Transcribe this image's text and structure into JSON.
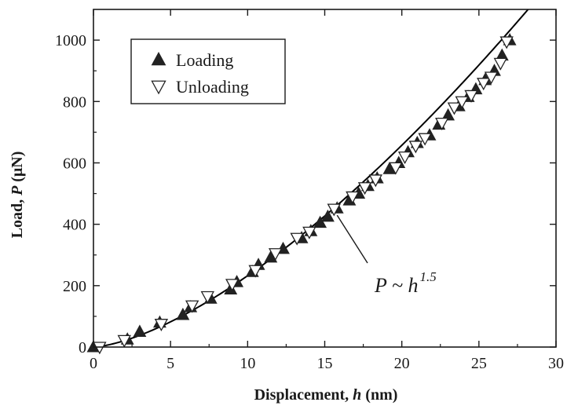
{
  "chart_data": {
    "type": "scatter",
    "title": "",
    "xlabel": {
      "prefix": "Displacement, ",
      "var": "h",
      "suffix": " (nm)"
    },
    "ylabel": {
      "prefix": "Load, ",
      "var": "P",
      "suffix": " (μN)"
    },
    "xlim": [
      0,
      30
    ],
    "ylim": [
      0,
      1100
    ],
    "xticks": [
      0,
      5,
      10,
      15,
      20,
      25,
      30
    ],
    "yticks": [
      0,
      200,
      400,
      600,
      800,
      1000
    ],
    "grid": false,
    "legend_position": "top-left",
    "series": [
      {
        "name": "Loading",
        "marker": "filled-triangle-up",
        "x": [
          0,
          2.2,
          3.0,
          4.3,
          5.8,
          6.3,
          7.6,
          8.9,
          9.3,
          10.3,
          10.7,
          11.5,
          12.3,
          13.5,
          14.1,
          14.7,
          15.2,
          15.8,
          16.6,
          17.2,
          17.8,
          18.4,
          19.2,
          19.8,
          20.4,
          21.0,
          21.8,
          22.4,
          23.0,
          23.7,
          24.3,
          24.8,
          25.4,
          26.0,
          26.5,
          27.0
        ],
        "y": [
          0,
          25,
          50,
          80,
          105,
          130,
          158,
          188,
          212,
          245,
          268,
          292,
          320,
          355,
          378,
          405,
          425,
          452,
          478,
          500,
          525,
          550,
          580,
          600,
          635,
          665,
          690,
          725,
          755,
          785,
          815,
          840,
          870,
          900,
          950,
          1000
        ]
      },
      {
        "name": "Unloading",
        "marker": "open-triangle-down",
        "x": [
          0.4,
          2.0,
          4.4,
          6.4,
          7.4,
          9.0,
          10.5,
          11.8,
          13.2,
          14.0,
          15.6,
          16.8,
          17.6,
          18.3,
          19.6,
          20.2,
          20.9,
          21.5,
          22.6,
          23.4,
          23.9,
          24.5,
          25.3,
          25.8,
          26.4,
          26.8
        ],
        "y": [
          0,
          22,
          75,
          135,
          165,
          205,
          250,
          305,
          355,
          375,
          450,
          490,
          520,
          545,
          585,
          620,
          655,
          680,
          730,
          780,
          800,
          820,
          860,
          880,
          925,
          995
        ]
      }
    ],
    "fit_curve": {
      "equation": "P = 7.35 h^1.5",
      "coefficient": 7.35,
      "exponent": 1.5
    },
    "annotation": {
      "base": "P ~ h",
      "exponent": "1.5",
      "points_to": [
        15.6,
        450
      ]
    }
  },
  "colors": {
    "axis": "#1a1a1a",
    "marker": "#222222",
    "curve": "#000000",
    "background": "#ffffff"
  }
}
